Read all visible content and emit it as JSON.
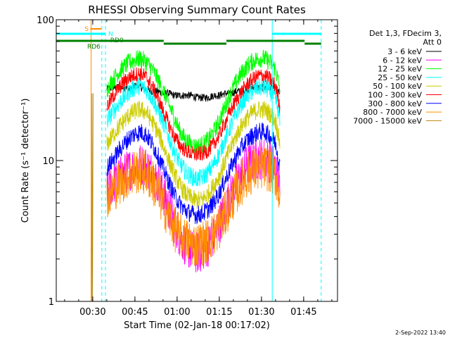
{
  "chart_data": {
    "type": "line",
    "title": "RHESSI Observing Summary Count Rates",
    "xlabel": "Start Time (02-Jan-18 00:17:02)",
    "ylabel": "Count Rate (s⁻¹ detector⁻¹)",
    "x_unit": "minutes after 00:17:02",
    "xlim": [
      0,
      100
    ],
    "ylim": [
      1,
      100
    ],
    "yscale": "log",
    "x_ticks": [
      {
        "x": 12.97,
        "label": "00:30"
      },
      {
        "x": 27.97,
        "label": "00:45"
      },
      {
        "x": 42.97,
        "label": "01:00"
      },
      {
        "x": 57.97,
        "label": "01:15"
      },
      {
        "x": 72.97,
        "label": "01:30"
      },
      {
        "x": 87.97,
        "label": "01:45"
      }
    ],
    "y_ticks": [
      {
        "y": 1,
        "label": "1"
      },
      {
        "y": 10,
        "label": "10"
      },
      {
        "y": 100,
        "label": "100"
      }
    ],
    "legend_title": [
      "Det 1,3, FDecim 3,",
      "Att 0"
    ],
    "legend_position": "right",
    "series": [
      {
        "name": "3 - 6 keV",
        "color": "#000000",
        "x": [
          18,
          20,
          22,
          24,
          26,
          28,
          30,
          32,
          34,
          36,
          38,
          40,
          42,
          44,
          46,
          48,
          50,
          52,
          54,
          56,
          58,
          60,
          62,
          64,
          66,
          68,
          70,
          72,
          74,
          76,
          78,
          79.5
        ],
        "values": [
          32,
          33,
          33,
          33,
          32,
          34,
          33,
          32,
          31,
          31,
          30,
          30,
          29,
          29,
          29,
          29,
          28,
          28,
          28,
          29,
          29,
          30,
          30,
          31,
          31,
          32,
          33,
          33,
          33,
          33,
          32,
          30
        ]
      },
      {
        "name": "6 - 12 keV",
        "color": "#ff00ff",
        "x": [
          18,
          20,
          22,
          24,
          26,
          28,
          30,
          32,
          34,
          36,
          38,
          40,
          42,
          44,
          46,
          48,
          50,
          52,
          54,
          56,
          58,
          60,
          62,
          64,
          66,
          68,
          70,
          72,
          74,
          76,
          78,
          79.5
        ],
        "values": [
          6.2,
          6.8,
          7.4,
          8,
          8.6,
          9.2,
          9.4,
          9,
          8.2,
          7,
          5.8,
          4.6,
          3.6,
          2.9,
          2.5,
          2.3,
          2.2,
          2.3,
          2.5,
          2.9,
          3.6,
          4.5,
          5.6,
          6.8,
          8,
          9.2,
          10,
          10.4,
          10.3,
          9.8,
          8.8,
          6
        ]
      },
      {
        "name": "12 - 25 keV",
        "color": "#00ff00",
        "x": [
          18,
          20,
          22,
          24,
          26,
          28,
          30,
          32,
          34,
          36,
          38,
          40,
          42,
          44,
          46,
          48,
          50,
          52,
          54,
          56,
          58,
          60,
          62,
          64,
          66,
          68,
          70,
          72,
          74,
          76,
          78,
          79.5
        ],
        "values": [
          32,
          37,
          42,
          46,
          50,
          52,
          53,
          50,
          45,
          38,
          31,
          25,
          20,
          16,
          14,
          13,
          12.5,
          13,
          14,
          16,
          19,
          24,
          30,
          36,
          42,
          47,
          51,
          53,
          53,
          50,
          44,
          32
        ]
      },
      {
        "name": "25 - 50 keV",
        "color": "#00ffff",
        "x": [
          18,
          20,
          22,
          24,
          26,
          28,
          30,
          32,
          34,
          36,
          38,
          40,
          42,
          44,
          46,
          48,
          50,
          52,
          54,
          56,
          58,
          60,
          62,
          64,
          66,
          68,
          70,
          72,
          74,
          76,
          78,
          79.5
        ],
        "values": [
          19,
          22,
          25,
          28,
          31,
          33,
          34,
          32,
          28,
          23,
          18.5,
          14.5,
          11.5,
          9.5,
          8.3,
          7.7,
          7.4,
          7.6,
          8.2,
          9.4,
          11.2,
          14,
          17.5,
          21.5,
          25.5,
          29,
          31.5,
          33,
          33,
          31,
          27,
          19
        ]
      },
      {
        "name": "50 - 100 keV",
        "color": "#cccc00",
        "x": [
          18,
          20,
          22,
          24,
          26,
          28,
          30,
          32,
          34,
          36,
          38,
          40,
          42,
          44,
          46,
          48,
          50,
          52,
          54,
          56,
          58,
          60,
          62,
          64,
          66,
          68,
          70,
          72,
          74,
          76,
          78,
          79.5
        ],
        "values": [
          13,
          15,
          17,
          19,
          21,
          22.5,
          23,
          22,
          19,
          16,
          12.8,
          10,
          8,
          6.6,
          5.8,
          5.4,
          5.2,
          5.3,
          5.8,
          6.6,
          7.8,
          9.8,
          12.2,
          15,
          17.8,
          20.2,
          22,
          23,
          23,
          21.5,
          19,
          13
        ]
      },
      {
        "name": "100 - 300 keV",
        "color": "#ff0000",
        "x": [
          18,
          20,
          22,
          24,
          26,
          28,
          30,
          32,
          34,
          36,
          38,
          40,
          42,
          44,
          46,
          48,
          50,
          52,
          54,
          56,
          58,
          60,
          62,
          64,
          66,
          68,
          70,
          72,
          74,
          76,
          78,
          79.5
        ],
        "values": [
          24,
          28,
          32,
          36,
          39,
          41,
          41.5,
          39,
          34,
          28,
          22.5,
          18,
          14.8,
          12.8,
          11.8,
          11.2,
          11,
          11.2,
          11.8,
          13,
          15.2,
          18.5,
          22.5,
          27,
          31,
          35,
          38,
          40,
          40,
          38,
          34,
          24
        ]
      },
      {
        "name": "300 - 800 keV",
        "color": "#0000ff",
        "x": [
          18,
          20,
          22,
          24,
          26,
          28,
          30,
          32,
          34,
          36,
          38,
          40,
          42,
          44,
          46,
          48,
          50,
          52,
          54,
          56,
          58,
          60,
          62,
          64,
          66,
          68,
          70,
          72,
          74,
          76,
          78,
          79.5
        ],
        "values": [
          8.8,
          10,
          11.5,
          13,
          14.5,
          15.5,
          16,
          15.2,
          13.2,
          11,
          8.8,
          7,
          5.7,
          4.9,
          4.4,
          4.2,
          4.1,
          4.2,
          4.5,
          5,
          5.9,
          7.2,
          8.8,
          10.7,
          12.5,
          14,
          15.2,
          16,
          16,
          15,
          13.3,
          9
        ]
      },
      {
        "name": "800 - 7000 keV",
        "color": "#ff8c00",
        "x": [
          18,
          20,
          22,
          24,
          26,
          28,
          30,
          32,
          34,
          36,
          38,
          40,
          42,
          44,
          46,
          48,
          50,
          52,
          54,
          56,
          58,
          60,
          62,
          64,
          66,
          68,
          70,
          72,
          74,
          76,
          78,
          79.5
        ],
        "values": [
          5.6,
          6.2,
          6.8,
          7.4,
          7.9,
          8.3,
          8.5,
          8.1,
          7.2,
          6,
          4.9,
          4,
          3.3,
          2.9,
          2.7,
          2.6,
          2.5,
          2.6,
          2.7,
          3,
          3.4,
          4.1,
          5,
          6,
          7,
          7.9,
          8.5,
          8.9,
          9,
          8.6,
          7.8,
          5.6
        ]
      },
      {
        "name": "7000 - 15000 keV",
        "color": "#b8860b",
        "x": [
          12.6,
          12.7,
          12.9,
          13.1
        ],
        "values": [
          1,
          30,
          1,
          30
        ]
      }
    ],
    "annotations": [
      {
        "label": "S",
        "color": "#ff8c00",
        "x_start": 12.1,
        "x_end": 16
      },
      {
        "label": "N",
        "color": "#00ffff",
        "x_start": 17.5,
        "x_end": 17.5
      },
      {
        "label": "RD0",
        "color": "#008000",
        "x_start": 17.7,
        "x_end": 17.7
      },
      {
        "label": "RD6",
        "color": "#008000",
        "x_start": 17.5,
        "x_end": 17.5
      }
    ],
    "shading_bars": [
      {
        "color": "#00ffff",
        "segments": [
          [
            0,
            17.5
          ],
          [
            76.8,
            94.2
          ]
        ]
      },
      {
        "color": "#008000",
        "segments": [
          [
            0,
            38.2
          ],
          [
            38.2,
            60.5
          ],
          [
            60.5,
            88.3
          ],
          [
            88.3,
            94.2
          ]
        ]
      }
    ],
    "vertical_lines": [
      {
        "x": 12.4,
        "color": "#ff8c00",
        "style": "solid"
      },
      {
        "x": 16.2,
        "color": "#00ffff",
        "style": "dashed"
      },
      {
        "x": 17.5,
        "color": "#00ffff",
        "style": "dashed"
      },
      {
        "x": 76.8,
        "color": "#00ffff",
        "style": "solid"
      },
      {
        "x": 94.2,
        "color": "#00ffff",
        "style": "dashed"
      }
    ]
  },
  "footer": {
    "timestamp": "2-Sep-2022 13:40"
  }
}
